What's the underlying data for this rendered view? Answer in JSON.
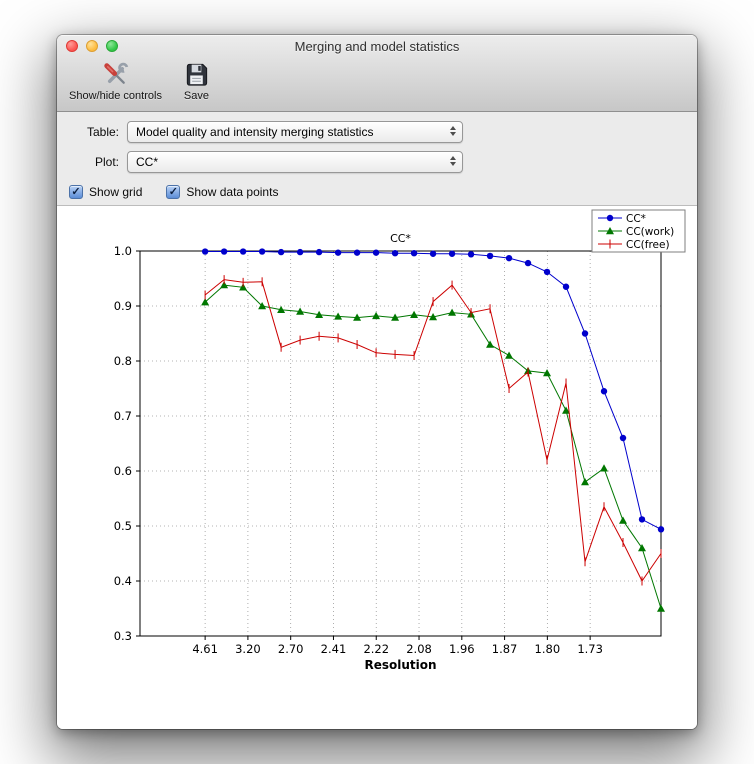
{
  "window": {
    "title": "Merging and model statistics"
  },
  "toolbar": {
    "buttons": [
      {
        "label": "Show/hide controls",
        "icon": "tools-icon"
      },
      {
        "label": "Save",
        "icon": "save-icon"
      }
    ]
  },
  "controls": {
    "table_label": "Table:",
    "table_value": "Model quality and intensity merging statistics",
    "plot_label": "Plot:",
    "plot_value": "CC*",
    "checkmark_glyph": "✓",
    "checkboxes": [
      {
        "label": "Show grid",
        "checked": true
      },
      {
        "label": "Show data points",
        "checked": true
      }
    ]
  },
  "chart_data": {
    "type": "line",
    "title": "CC*",
    "xlabel": "Resolution",
    "ylabel": "",
    "ylim": [
      0.3,
      1.0
    ],
    "yticks": [
      0.3,
      0.4,
      0.5,
      0.6,
      0.7,
      0.8,
      0.9,
      1.0
    ],
    "xticklabels": [
      "4.61",
      "3.20",
      "2.70",
      "2.41",
      "2.22",
      "2.08",
      "1.96",
      "1.87",
      "1.80",
      "1.73"
    ],
    "grid": true,
    "show_points": true,
    "legend_position": "upper right",
    "series": [
      {
        "name": "CC*",
        "color": "#0000cc",
        "marker": "circle",
        "values": [
          0.999,
          0.999,
          0.999,
          0.999,
          0.998,
          0.998,
          0.998,
          0.997,
          0.997,
          0.997,
          0.996,
          0.996,
          0.995,
          0.995,
          0.994,
          0.991,
          0.987,
          0.978,
          0.962,
          0.935,
          0.85,
          0.745,
          0.66,
          0.512,
          0.494
        ]
      },
      {
        "name": "CC(work)",
        "color": "#007700",
        "marker": "triangle",
        "values": [
          0.907,
          0.938,
          0.934,
          0.9,
          0.893,
          0.89,
          0.884,
          0.881,
          0.879,
          0.882,
          0.879,
          0.884,
          0.88,
          0.888,
          0.885,
          0.83,
          0.81,
          0.782,
          0.778,
          0.71,
          0.58,
          0.605,
          0.51,
          0.46,
          0.35
        ]
      },
      {
        "name": "CC(free)",
        "color": "#cc0000",
        "marker": "vline",
        "values": [
          0.92,
          0.948,
          0.943,
          0.944,
          0.825,
          0.838,
          0.845,
          0.842,
          0.83,
          0.815,
          0.812,
          0.81,
          0.908,
          0.938,
          0.888,
          0.895,
          0.75,
          0.78,
          0.62,
          0.76,
          0.435,
          0.535,
          0.47,
          0.4,
          0.45
        ]
      }
    ]
  }
}
